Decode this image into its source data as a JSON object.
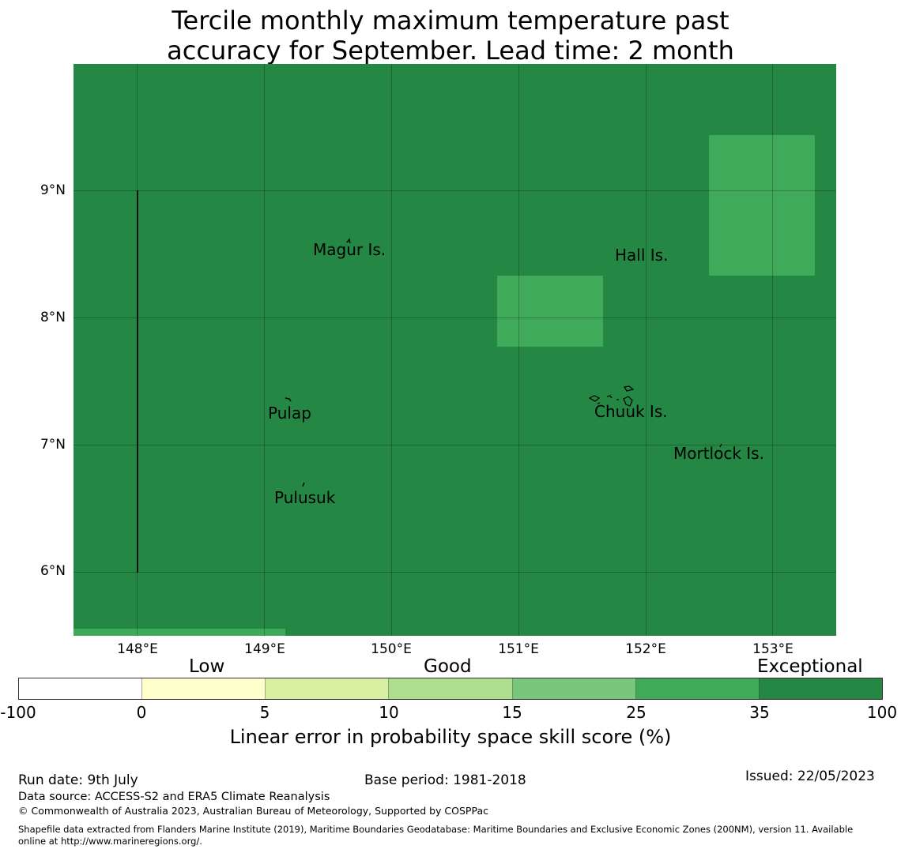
{
  "title": {
    "line1": "Tercile monthly maximum temperature past",
    "line2": "accuracy for September. Lead time: 2 month"
  },
  "map": {
    "background_color": "#248743",
    "highlight_color": "#3faa59",
    "latitude_labels": [
      "9°N",
      "8°N",
      "7°N",
      "6°N"
    ],
    "longitude_labels": [
      "148°E",
      "149°E",
      "150°E",
      "151°E",
      "152°E",
      "153°E"
    ],
    "places": [
      "Magur Is.",
      "Hall Is.",
      "Pulap",
      "Chuuk Is.",
      "Mortlock Is.",
      "Pulusuk"
    ]
  },
  "legend": {
    "categories": [
      "Low",
      "Good",
      "Exceptional"
    ],
    "ticks": [
      "-100",
      "0",
      "5",
      "10",
      "15",
      "25",
      "35",
      "100"
    ],
    "colors": [
      "#ffffff",
      "#ffffcc",
      "#d9f0a3",
      "#addd8e",
      "#78c679",
      "#3faa59",
      "#248743"
    ],
    "axis_label": "Linear error in probability space skill score (%)"
  },
  "footer": {
    "run_date": "Run date: 9th July",
    "base_period": "Base period: 1981-2018",
    "issued": "Issued: 22/05/2023",
    "data_source": "Data source: ACCESS-S2 and ERA5 Climate Reanalysis",
    "copyright": "© Commonwealth of Australia 2023, Australian Bureau of Meteorology, Supported by COSPPac",
    "shapefile_line1": "Shapefile data extracted from Flanders Marine Institute (2019), Maritime Boundaries Geodatabase: Maritime Boundaries and Exclusive Economic Zones (200NM), version 11. Available",
    "shapefile_line2": "online at http://www.marineregions.org/."
  }
}
